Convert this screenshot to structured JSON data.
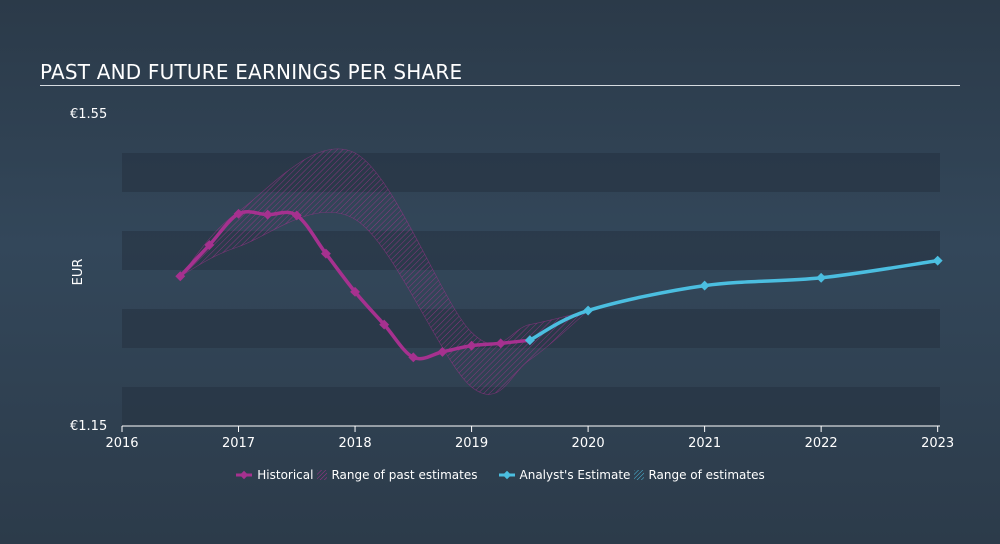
{
  "chart_data": {
    "type": "line",
    "title": "PAST AND FUTURE EARNINGS PER SHARE",
    "xlabel": "",
    "ylabel": "EUR",
    "ylim": [
      1.15,
      1.55
    ],
    "y_tick_labels": [
      "€1.55",
      "€1.15"
    ],
    "x_ticks": [
      2016,
      2017,
      2018,
      2019,
      2020,
      2021,
      2022,
      2023
    ],
    "xlim": [
      2016,
      2023.02
    ],
    "series": [
      {
        "name": "Historical",
        "color": "#a6318f",
        "x": [
          2016.5,
          2016.75,
          2017.0,
          2017.25,
          2017.5,
          2017.75,
          2018.0,
          2018.25,
          2018.5,
          2018.75,
          2019.0,
          2019.25,
          2019.5
        ],
        "y": [
          1.342,
          1.382,
          1.422,
          1.421,
          1.42,
          1.371,
          1.322,
          1.28,
          1.238,
          1.245,
          1.253,
          1.256,
          1.26
        ]
      },
      {
        "name": "Analyst's Estimate",
        "color": "#4bbee0",
        "x": [
          2019.5,
          2020.0,
          2021.0,
          2022.0,
          2023.0
        ],
        "y": [
          1.26,
          1.298,
          1.33,
          1.34,
          1.362
        ]
      }
    ],
    "past_estimate_range": {
      "name": "Range of past estimates",
      "x": [
        2016.5,
        2017.0,
        2018.0,
        2019.0,
        2019.5,
        2020.0
      ],
      "low": [
        1.342,
        1.38,
        1.415,
        1.2,
        1.235,
        1.298
      ],
      "high": [
        1.342,
        1.425,
        1.5,
        1.27,
        1.28,
        1.298
      ]
    },
    "legend": [
      {
        "label": "Historical",
        "type": "line",
        "color": "#a6318f"
      },
      {
        "label": "Range of past estimates",
        "type": "hatch",
        "color": "#a6318f"
      },
      {
        "label": "Analyst's Estimate",
        "type": "line",
        "color": "#4bbee0"
      },
      {
        "label": "Range of estimates",
        "type": "hatch",
        "color": "#4bbee0"
      }
    ],
    "legend_position": "bottom-center",
    "grid": "horizontal bands"
  }
}
